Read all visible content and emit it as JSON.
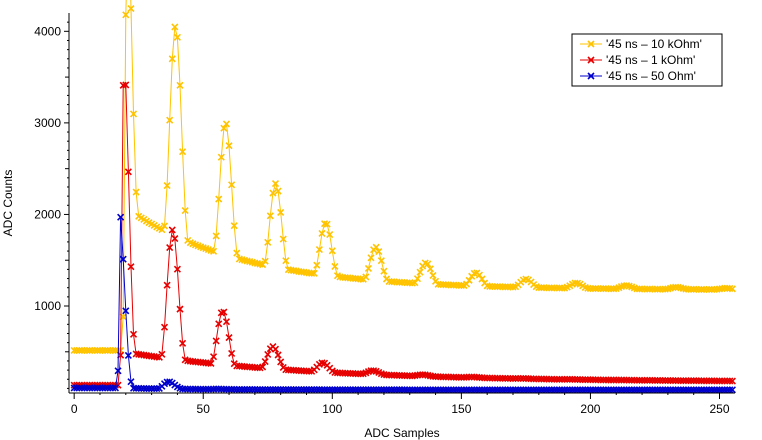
{
  "chart_data": {
    "type": "line",
    "xlabel": "ADC Samples",
    "ylabel": "ADC Counts",
    "xlim": [
      -2,
      256
    ],
    "ylim": [
      50,
      4200
    ],
    "xticks": [
      0,
      50,
      100,
      150,
      200,
      250
    ],
    "yticks": [
      1000,
      2000,
      3000,
      4000
    ],
    "grid": false,
    "legend_position": "top-right",
    "series": [
      {
        "name": "'45 ns – 10 kOhm'",
        "color": "#FFC300",
        "marker": "x",
        "baseline": 515,
        "start": 20,
        "peak": 4180,
        "period": 9.7,
        "osc_amp": 3650,
        "osc_decay": 42,
        "final": 1175,
        "dc_amp": 900,
        "dc_decay": 45
      },
      {
        "name": "'45 ns – 1 kOhm'",
        "color": "#E60000",
        "marker": "x",
        "baseline": 135,
        "start": 19,
        "peak": 3410,
        "period": 9.7,
        "osc_amp": 3400,
        "osc_decay": 22,
        "final": 170,
        "dc_amp": 330,
        "dc_decay": 70
      },
      {
        "name": "'45 ns – 50 Ohm'",
        "color": "#0000CC",
        "marker": "x",
        "baseline": 105,
        "start": 18,
        "peak": 1970,
        "period": 9.7,
        "osc_amp": 1850,
        "osc_decay": 6,
        "final": 85,
        "dc_amp": 20,
        "dc_decay": 30
      }
    ]
  }
}
